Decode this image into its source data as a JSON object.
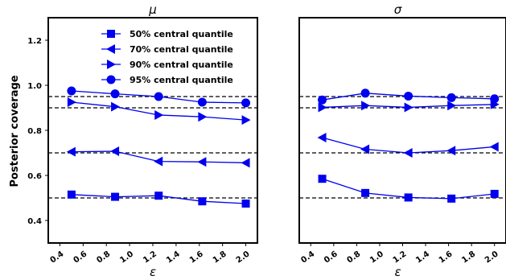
{
  "figure": {
    "ylabel": "Posterior coverage"
  },
  "legend": {
    "entries": [
      {
        "marker": "square",
        "label": "50% central quantile"
      },
      {
        "marker": "triangle-left",
        "label": "70% central quantile"
      },
      {
        "marker": "triangle-right",
        "label": "90%  central quantile"
      },
      {
        "marker": "circle",
        "label": "95%  central quantile"
      }
    ],
    "placement": "top-right of left panel"
  },
  "colors": {
    "series": "#0000ee",
    "reference_line": "#000000"
  },
  "chart_data": [
    {
      "type": "line",
      "title": "μ",
      "xlabel": "ε",
      "ylabel": "Posterior coverage",
      "x": [
        0.5,
        0.875,
        1.25,
        1.625,
        2.0
      ],
      "xlim": [
        0.3,
        2.1
      ],
      "ylim": [
        0.3,
        1.3
      ],
      "xticks": [
        "0.4",
        "0.6",
        "0.8",
        "1.0",
        "1.2",
        "1.4",
        "1.6",
        "1.8",
        "2.0"
      ],
      "yticks": [
        "0.4",
        "0.6",
        "0.8",
        "1.0",
        "1.2"
      ],
      "reference_lines": [
        0.5,
        0.7,
        0.9,
        0.95
      ],
      "grid": false,
      "series": [
        {
          "name": "50% central quantile",
          "marker": "square",
          "values": [
            0.515,
            0.505,
            0.51,
            0.485,
            0.475
          ]
        },
        {
          "name": "70% central quantile",
          "marker": "triangle-left",
          "values": [
            0.705,
            0.707,
            0.662,
            0.66,
            0.656
          ]
        },
        {
          "name": "90%  central quantile",
          "marker": "triangle-right",
          "values": [
            0.925,
            0.905,
            0.868,
            0.86,
            0.846
          ]
        },
        {
          "name": "95%  central quantile",
          "marker": "circle",
          "values": [
            0.975,
            0.962,
            0.95,
            0.925,
            0.922
          ]
        }
      ]
    },
    {
      "type": "line",
      "title": "σ",
      "xlabel": "ε",
      "ylabel": "",
      "x": [
        0.5,
        0.875,
        1.25,
        1.625,
        2.0
      ],
      "xlim": [
        0.3,
        2.1
      ],
      "ylim": [
        0.3,
        1.3
      ],
      "xticks": [
        "0.4",
        "0.6",
        "0.8",
        "1.0",
        "1.2",
        "1.4",
        "1.6",
        "1.8",
        "2.0"
      ],
      "yticks": [],
      "reference_lines": [
        0.5,
        0.7,
        0.9,
        0.95
      ],
      "grid": false,
      "series": [
        {
          "name": "50% central quantile",
          "marker": "square",
          "values": [
            0.585,
            0.522,
            0.502,
            0.497,
            0.518
          ]
        },
        {
          "name": "70% central quantile",
          "marker": "triangle-left",
          "values": [
            0.768,
            0.716,
            0.7,
            0.71,
            0.727
          ]
        },
        {
          "name": "90%  central quantile",
          "marker": "triangle-right",
          "values": [
            0.902,
            0.91,
            0.902,
            0.91,
            0.915
          ]
        },
        {
          "name": "95%  central quantile",
          "marker": "circle",
          "values": [
            0.935,
            0.965,
            0.952,
            0.945,
            0.94
          ]
        }
      ]
    }
  ]
}
